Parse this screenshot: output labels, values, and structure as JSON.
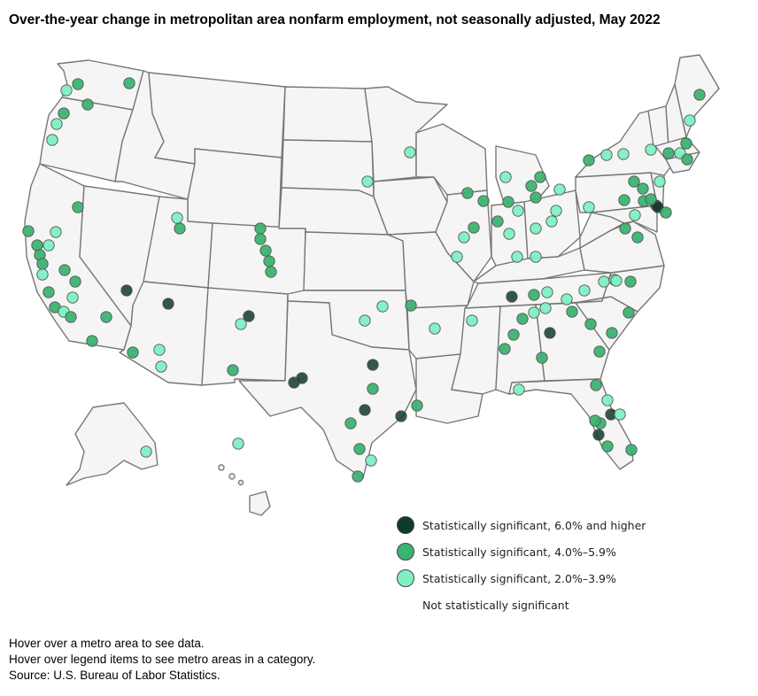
{
  "title": "Over-the-year change in metropolitan area nonfarm employment, not seasonally adjusted, May 2022",
  "colors": {
    "dark": "#0f3b2a",
    "mid": "#3cb371",
    "light": "#7ef0c2",
    "state_fill": "#f5f5f5",
    "state_stroke": "#777777"
  },
  "legend": [
    {
      "key": "dark",
      "label": "Statistically significant, 6.0% and higher"
    },
    {
      "key": "mid",
      "label": "Statistically significant, 4.0%–5.9%"
    },
    {
      "key": "light",
      "label": "Statistically significant, 2.0%–3.9%"
    },
    {
      "key": "none",
      "label": "Not statistically significant"
    }
  ],
  "notes": [
    "Hover over a metro area to see data.",
    "Hover over legend items to see metro areas in a category.",
    "Source: U.S. Bureau of Labor Statistics."
  ],
  "metro_categories": {
    "dark": 15,
    "mid": 78,
    "light": 55
  }
}
